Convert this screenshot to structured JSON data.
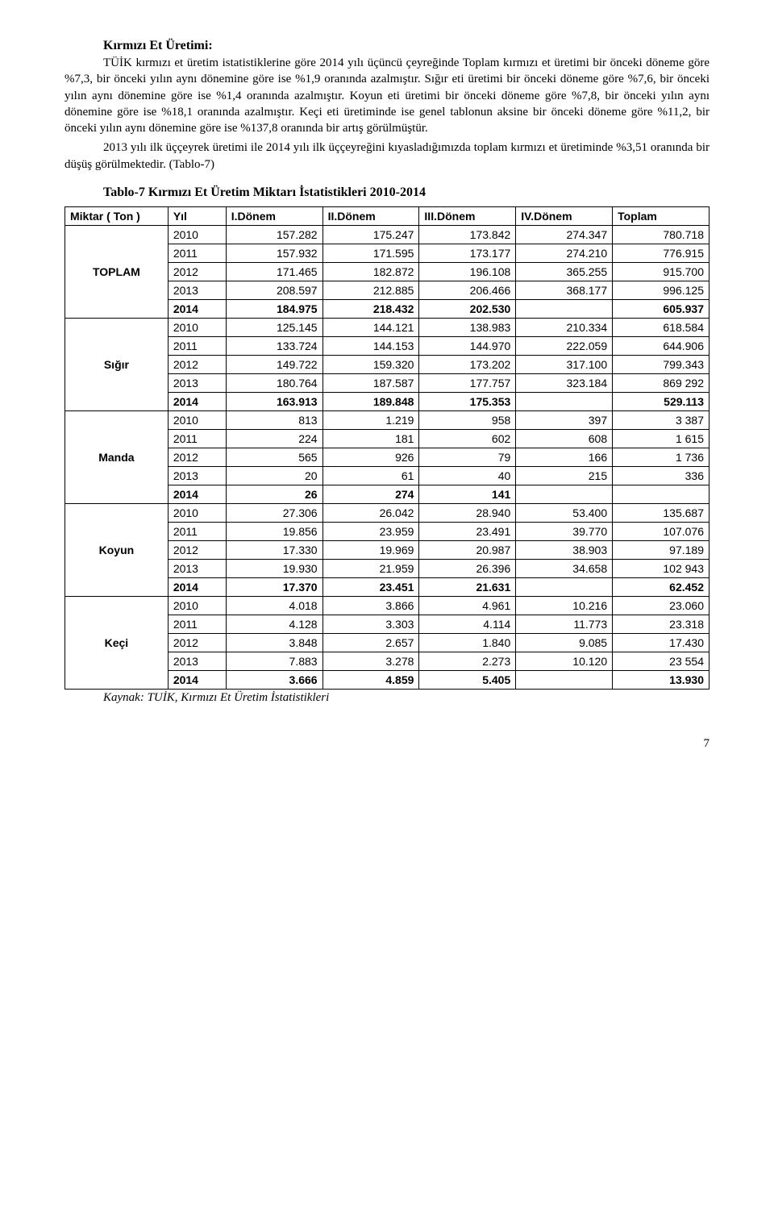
{
  "section": {
    "title": "Kırmızı Et Üretimi:",
    "para1": "TÜİK kırmızı et üretim istatistiklerine göre 2014 yılı üçüncü çeyreğinde Toplam kırmızı et üretimi bir önceki döneme göre %7,3, bir önceki yılın aynı dönemine göre ise %1,9 oranında azalmıştır. Sığır eti üretimi bir önceki döneme göre %7,6, bir önceki yılın aynı dönemine göre ise %1,4 oranında azalmıştır. Koyun eti üretimi bir önceki döneme göre %7,8, bir önceki yılın aynı dönemine göre ise %18,1 oranında azalmıştır. Keçi eti üretiminde ise genel tablonun aksine bir önceki döneme göre %11,2, bir önceki yılın aynı dönemine göre ise %137,8 oranında bir artış görülmüştür.",
    "para2": "2013 yılı ilk üççeyrek üretimi ile 2014 yılı ilk üççeyreğini kıyasladığımızda toplam kırmızı et üretiminde %3,51 oranında bir düşüş görülmektedir. (Tablo-7)"
  },
  "table": {
    "title": "Tablo-7 Kırmızı Et Üretim Miktarı İstatistikleri 2010-2014",
    "columns": [
      "Miktar ( Ton )",
      "Yıl",
      "I.Dönem",
      "II.Dönem",
      "III.Dönem",
      "IV.Dönem",
      "Toplam"
    ],
    "col_widths": [
      "16%",
      "9%",
      "15%",
      "15%",
      "15%",
      "15%",
      "15%"
    ],
    "groups": [
      {
        "name": "TOPLAM",
        "rows": [
          {
            "yil": "2010",
            "d1": "157.282",
            "d2": "175.247",
            "d3": "173.842",
            "d4": "274.347",
            "tot": "780.718",
            "bold": false
          },
          {
            "yil": "2011",
            "d1": "157.932",
            "d2": "171.595",
            "d3": "173.177",
            "d4": "274.210",
            "tot": "776.915",
            "bold": false
          },
          {
            "yil": "2012",
            "d1": "171.465",
            "d2": "182.872",
            "d3": "196.108",
            "d4": "365.255",
            "tot": "915.700",
            "bold": false
          },
          {
            "yil": "2013",
            "d1": "208.597",
            "d2": "212.885",
            "d3": "206.466",
            "d4": "368.177",
            "tot": "996.125",
            "bold": false
          },
          {
            "yil": "2014",
            "d1": "184.975",
            "d2": "218.432",
            "d3": "202.530",
            "d4": "",
            "tot": "605.937",
            "bold": true
          }
        ]
      },
      {
        "name": "Sığır",
        "rows": [
          {
            "yil": "2010",
            "d1": "125.145",
            "d2": "144.121",
            "d3": "138.983",
            "d4": "210.334",
            "tot": "618.584",
            "bold": false
          },
          {
            "yil": "2011",
            "d1": "133.724",
            "d2": "144.153",
            "d3": "144.970",
            "d4": "222.059",
            "tot": "644.906",
            "bold": false
          },
          {
            "yil": "2012",
            "d1": "149.722",
            "d2": "159.320",
            "d3": "173.202",
            "d4": "317.100",
            "tot": "799.343",
            "bold": false
          },
          {
            "yil": "2013",
            "d1": "180.764",
            "d2": "187.587",
            "d3": "177.757",
            "d4": "323.184",
            "tot": "869 292",
            "bold": false
          },
          {
            "yil": "2014",
            "d1": "163.913",
            "d2": "189.848",
            "d3": "175.353",
            "d4": "",
            "tot": "529.113",
            "bold": true
          }
        ]
      },
      {
        "name": "Manda",
        "rows": [
          {
            "yil": "2010",
            "d1": "813",
            "d2": "1.219",
            "d3": "958",
            "d4": "397",
            "tot": "3 387",
            "bold": false
          },
          {
            "yil": "2011",
            "d1": "224",
            "d2": "181",
            "d3": "602",
            "d4": "608",
            "tot": "1 615",
            "bold": false
          },
          {
            "yil": "2012",
            "d1": "565",
            "d2": "926",
            "d3": "79",
            "d4": "166",
            "tot": "1 736",
            "bold": false
          },
          {
            "yil": "2013",
            "d1": "20",
            "d2": "61",
            "d3": "40",
            "d4": "215",
            "tot": "336",
            "bold": false
          },
          {
            "yil": "2014",
            "d1": "26",
            "d2": "274",
            "d3": "141",
            "d4": "",
            "tot": "",
            "bold": true
          }
        ]
      },
      {
        "name": "Koyun",
        "rows": [
          {
            "yil": "2010",
            "d1": "27.306",
            "d2": "26.042",
            "d3": "28.940",
            "d4": "53.400",
            "tot": "135.687",
            "bold": false
          },
          {
            "yil": "2011",
            "d1": "19.856",
            "d2": "23.959",
            "d3": "23.491",
            "d4": "39.770",
            "tot": "107.076",
            "bold": false
          },
          {
            "yil": "2012",
            "d1": "17.330",
            "d2": "19.969",
            "d3": "20.987",
            "d4": "38.903",
            "tot": "97.189",
            "bold": false
          },
          {
            "yil": "2013",
            "d1": "19.930",
            "d2": "21.959",
            "d3": "26.396",
            "d4": "34.658",
            "tot": "102 943",
            "bold": false
          },
          {
            "yil": "2014",
            "d1": "17.370",
            "d2": "23.451",
            "d3": "21.631",
            "d4": "",
            "tot": "62.452",
            "bold": true
          }
        ]
      },
      {
        "name": "Keçi",
        "rows": [
          {
            "yil": "2010",
            "d1": "4.018",
            "d2": "3.866",
            "d3": "4.961",
            "d4": "10.216",
            "tot": "23.060",
            "bold": false
          },
          {
            "yil": "2011",
            "d1": "4.128",
            "d2": "3.303",
            "d3": "4.114",
            "d4": "11.773",
            "tot": "23.318",
            "bold": false
          },
          {
            "yil": "2012",
            "d1": "3.848",
            "d2": "2.657",
            "d3": "1.840",
            "d4": "9.085",
            "tot": "17.430",
            "bold": false
          },
          {
            "yil": "2013",
            "d1": "7.883",
            "d2": "3.278",
            "d3": "2.273",
            "d4": "10.120",
            "tot": "23 554",
            "bold": false
          },
          {
            "yil": "2014",
            "d1": "3.666",
            "d2": "4.859",
            "d3": "5.405",
            "d4": "",
            "tot": "13.930",
            "bold": true
          }
        ]
      }
    ],
    "source": "Kaynak: TUİK, Kırmızı Et Üretim İstatistikleri"
  },
  "page_number": "7",
  "colors": {
    "text": "#000000",
    "background": "#ffffff",
    "border": "#000000"
  }
}
